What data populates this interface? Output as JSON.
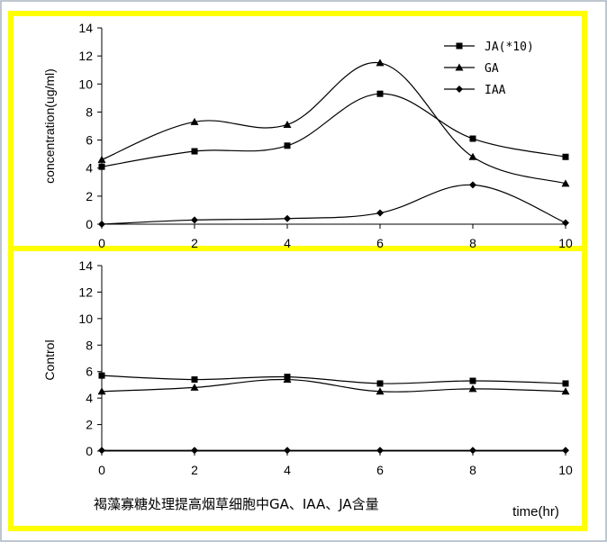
{
  "chart_data": [
    {
      "type": "line",
      "ylabel": "concentration(ug/ml)",
      "x": [
        0,
        2,
        4,
        6,
        8,
        10
      ],
      "xlim": [
        0,
        10
      ],
      "ylim": [
        0,
        14
      ],
      "yticks": [
        0,
        2,
        4,
        6,
        8,
        10,
        12,
        14
      ],
      "xticks": [
        0,
        2,
        4,
        6,
        8,
        10
      ],
      "grid": false,
      "legend": "top-right",
      "series": [
        {
          "name": "JA(*10)",
          "marker": "square",
          "values": [
            4.1,
            5.2,
            5.6,
            9.3,
            6.1,
            4.8
          ]
        },
        {
          "name": "GA",
          "marker": "triangle",
          "values": [
            4.6,
            7.3,
            7.1,
            11.5,
            4.8,
            2.9
          ]
        },
        {
          "name": "IAA",
          "marker": "diamond",
          "values": [
            0.0,
            0.3,
            0.4,
            0.8,
            2.8,
            0.1
          ]
        }
      ]
    },
    {
      "type": "line",
      "ylabel": "Control",
      "xlabel": "time(hr)",
      "x": [
        0,
        2,
        4,
        6,
        8,
        10
      ],
      "xlim": [
        0,
        10
      ],
      "ylim": [
        0,
        14
      ],
      "yticks": [
        0,
        2,
        4,
        6,
        8,
        10,
        12,
        14
      ],
      "xticks": [
        0,
        2,
        4,
        6,
        8,
        10
      ],
      "grid": false,
      "series": [
        {
          "name": "JA(*10)",
          "marker": "square",
          "values": [
            5.7,
            5.4,
            5.6,
            5.1,
            5.3,
            5.1
          ]
        },
        {
          "name": "GA",
          "marker": "triangle",
          "values": [
            4.5,
            4.8,
            5.4,
            4.5,
            4.7,
            4.5
          ]
        },
        {
          "name": "IAA",
          "marker": "diamond",
          "values": [
            0.05,
            0.05,
            0.05,
            0.05,
            0.05,
            0.05
          ]
        }
      ]
    }
  ],
  "caption": "褐藻寡糖处理提高烟草细胞中GA、IAA、JA含量",
  "colors": {
    "frame": "#ffff00",
    "outer_border": "#a9b4bf",
    "line": "#000000"
  }
}
